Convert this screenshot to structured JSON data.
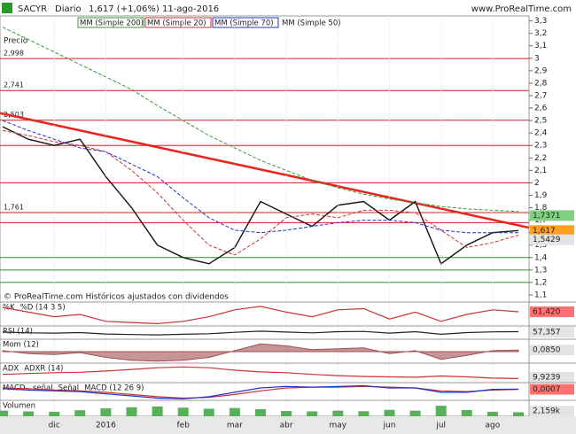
{
  "chart_data": [
    {
      "type": "line",
      "symbol": "SACYR",
      "period": "Diario",
      "price_change": "1,617 (+1,06%)",
      "date": "11-ago-2016",
      "source": "www.ProRealTime.com",
      "price_label": "Precio",
      "footer": "© ProRealTime.com  Históricos ajustados con dividendos",
      "inactive_legend": "MM (Simple 50)",
      "categories": [
        null,
        null,
        "dic",
        null,
        "2016",
        null,
        null,
        "feb",
        null,
        "mar",
        null,
        "abr",
        null,
        "may",
        null,
        "jun",
        null,
        "jul",
        null,
        "ago",
        null
      ],
      "series": [
        {
          "name": "Precio",
          "color": "#111111",
          "values": [
            2.45,
            2.35,
            2.3,
            2.35,
            2.05,
            1.8,
            1.5,
            1.4,
            1.35,
            1.48,
            1.85,
            1.75,
            1.65,
            1.82,
            1.85,
            1.7,
            1.85,
            1.35,
            1.5,
            1.6,
            1.617
          ]
        },
        {
          "name": "MM (Simple 200)",
          "color": "#3a9a3a",
          "values": [
            3.25,
            3.15,
            3.05,
            2.95,
            2.85,
            2.75,
            2.62,
            2.5,
            2.38,
            2.28,
            2.18,
            2.1,
            2.02,
            1.96,
            1.91,
            1.87,
            1.84,
            1.81,
            1.79,
            1.78,
            1.77
          ]
        },
        {
          "name": "MM (Simple 20)",
          "color": "#cc3333",
          "values": [
            2.42,
            2.38,
            2.33,
            2.3,
            2.25,
            2.1,
            1.92,
            1.7,
            1.5,
            1.42,
            1.55,
            1.72,
            1.75,
            1.72,
            1.78,
            1.78,
            1.76,
            1.62,
            1.48,
            1.52,
            1.58
          ]
        },
        {
          "name": "MM (Simple 70)",
          "color": "#2233cc",
          "values": [
            2.5,
            2.42,
            2.35,
            2.28,
            2.25,
            2.15,
            2.05,
            1.88,
            1.72,
            1.62,
            1.6,
            1.62,
            1.65,
            1.68,
            1.7,
            1.7,
            1.68,
            1.62,
            1.6,
            1.6,
            1.6
          ]
        }
      ],
      "ylim": [
        1.05,
        3.34
      ],
      "yticks": [
        {
          "value": 1.1,
          "label": "1,1"
        },
        {
          "value": 1.2,
          "label": "1,2"
        },
        {
          "value": 1.3,
          "label": "1,3"
        },
        {
          "value": 1.4,
          "label": "1,4"
        },
        {
          "value": 1.5,
          "label": "1,5"
        },
        {
          "value": 1.6,
          "label": "1,6"
        },
        {
          "value": 1.7,
          "label": "1,7"
        },
        {
          "value": 1.8,
          "label": "1,8"
        },
        {
          "value": 1.9,
          "label": "1,9"
        },
        2,
        {
          "value": 2.1,
          "label": "2,1"
        },
        {
          "value": 2.2,
          "label": "2,2"
        },
        {
          "value": 2.3,
          "label": "2,3"
        },
        {
          "value": 2.4,
          "label": "2,4"
        },
        {
          "value": 2.5,
          "label": "2,5"
        },
        {
          "value": 2.6,
          "label": "2,6"
        },
        {
          "value": 2.7,
          "label": "2,7"
        },
        {
          "value": 2.8,
          "label": "2,8"
        },
        {
          "value": 2.9,
          "label": "2,9"
        },
        3,
        {
          "value": 3.1,
          "label": "3,1"
        },
        {
          "value": 3.2,
          "label": "3,2"
        },
        {
          "value": 3.3,
          "label": "3,3"
        }
      ],
      "levels": [
        {
          "value": 2.998,
          "label": "2,998"
        },
        {
          "value": 2.741,
          "label": "2,741"
        },
        {
          "value": 2.503,
          "label": "2,503"
        },
        {
          "value": 1.761,
          "label": "1,761"
        }
      ],
      "resistance_levels": [
        2.3,
        2.0,
        1.68
      ],
      "resistance_color": "#cc2222",
      "support_levels": [
        1.4,
        1.3,
        1.2
      ],
      "support_color": "#338833",
      "trendline": {
        "color": "#e8261f",
        "values": [
          2.56,
          1.64
        ]
      },
      "markers": [
        {
          "value": 1.7371,
          "label": "1,7371",
          "color": "#7fd17f"
        },
        {
          "value": 1.617,
          "label": "1,617",
          "color": "#ffa020"
        },
        {
          "value": 1.5429,
          "label": "1,5429",
          "color": "#e4e4e4"
        }
      ]
    },
    {
      "type": "line",
      "title": "%K",
      "series": [
        {
          "name": "%D (14 3 5)",
          "color": "#cc3333",
          "values": [
            80,
            60,
            40,
            50,
            20,
            15,
            10,
            20,
            40,
            70,
            85,
            60,
            40,
            70,
            75,
            30,
            60,
            20,
            50,
            70,
            61.42
          ]
        }
      ],
      "ylim": [
        0,
        100
      ],
      "current": {
        "value": 61.42,
        "label": "61,420",
        "color": "#ff7070"
      }
    },
    {
      "type": "line",
      "title": "RSI (14)",
      "series": [
        {
          "name": "RSI",
          "color": "#222222",
          "values": [
            55,
            48,
            45,
            50,
            38,
            33,
            30,
            35,
            40,
            52,
            62,
            55,
            48,
            58,
            60,
            45,
            58,
            35,
            50,
            56,
            57.357
          ]
        }
      ],
      "ylim": [
        0,
        100
      ],
      "current": {
        "value": 57.357,
        "label": "57,357",
        "color": "#e4e4e4"
      }
    },
    {
      "type": "area",
      "title": "Mom (12)",
      "series": [
        {
          "name": "Mom",
          "color": "#a05050",
          "values": [
            0.05,
            -0.1,
            -0.15,
            -0.05,
            -0.3,
            -0.45,
            -0.5,
            -0.45,
            -0.3,
            0.05,
            0.4,
            0.3,
            0.1,
            0.15,
            0.2,
            -0.1,
            0.05,
            -0.4,
            -0.2,
            0.05,
            0.085
          ]
        }
      ],
      "ylim": [
        -0.6,
        0.6
      ],
      "current": {
        "value": 0.085,
        "label": "0,0850",
        "color": "#e4e4e4"
      }
    },
    {
      "type": "line",
      "title": "ADX",
      "series": [
        {
          "name": "ADXR (14)",
          "color": "#cc3333",
          "values": [
            20,
            22,
            24,
            25,
            28,
            32,
            36,
            38,
            36,
            30,
            26,
            24,
            20,
            17,
            15,
            14,
            13,
            16,
            14,
            11,
            9.9239
          ]
        }
      ],
      "ylim": [
        0,
        45
      ],
      "current": {
        "value": 9.9239,
        "label": "9,9239",
        "color": "#e4e4e4"
      }
    },
    {
      "type": "line",
      "title": "MACD-, señal",
      "series": [
        {
          "name": "Señal",
          "color": "#cc3333",
          "values": [
            0.02,
            0.01,
            -0.01,
            -0.02,
            -0.04,
            -0.07,
            -0.1,
            -0.12,
            -0.11,
            -0.07,
            -0.02,
            0.02,
            0.03,
            0.03,
            0.04,
            0.03,
            0.02,
            -0.02,
            -0.03,
            -0.01,
            0.0007
          ]
        },
        {
          "name": "MACD (12 26 9)",
          "color": "#2233cc",
          "values": [
            0.01,
            -0.01,
            -0.02,
            -0.03,
            -0.06,
            -0.09,
            -0.12,
            -0.13,
            -0.1,
            -0.04,
            0.02,
            0.04,
            0.03,
            0.04,
            0.05,
            0.02,
            0.02,
            -0.04,
            -0.04,
            0,
            0.003
          ]
        }
      ],
      "ylim": [
        -0.15,
        0.08
      ],
      "current": {
        "value": 0.0007,
        "label": "0,0007",
        "color": "#ff7070"
      }
    },
    {
      "type": "bar",
      "title": "Volumen",
      "series": [
        {
          "name": "Volumen",
          "color": "#58b058",
          "values": [
            3000,
            2600,
            2400,
            3200,
            4200,
            4800,
            5200,
            4600,
            4000,
            4400,
            3800,
            2800,
            2600,
            3000,
            2700,
            3400,
            3000,
            5600,
            3300,
            2400,
            2159
          ]
        }
      ],
      "ylim": [
        0,
        8000
      ],
      "current": {
        "value": 2159,
        "label": "2,159k",
        "color": "#e4e4e4"
      }
    }
  ]
}
